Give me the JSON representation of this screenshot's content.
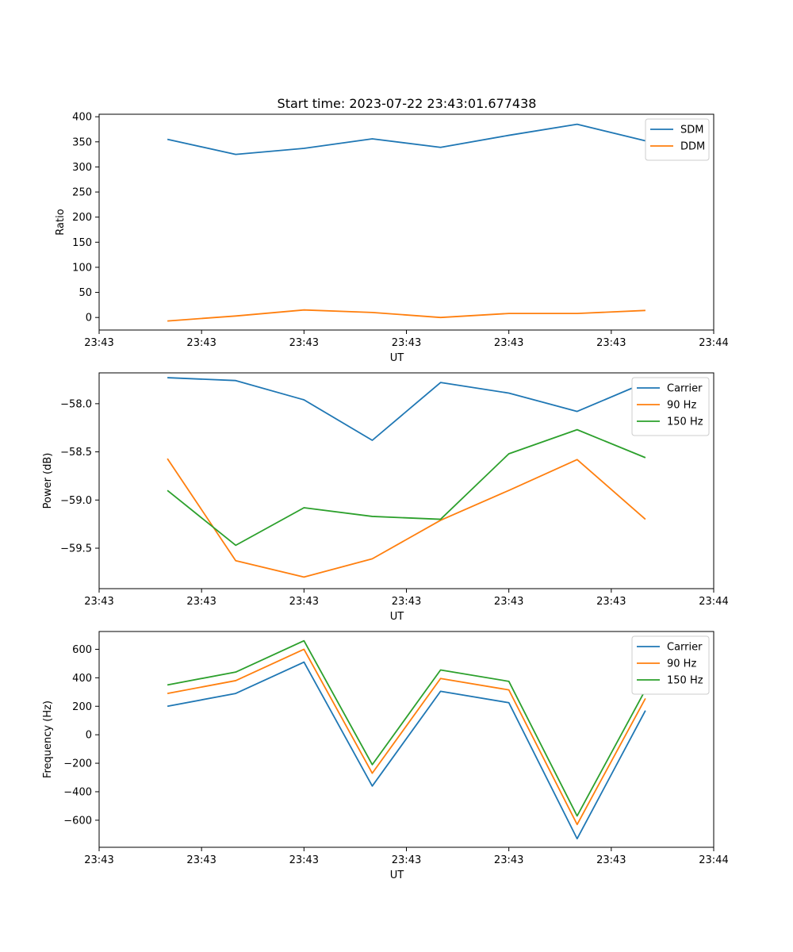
{
  "figure_title": "Start time: 2023-07-22 23:43:01.677438",
  "chart_data": [
    {
      "type": "line",
      "xlabel": "UT",
      "ylabel": "Ratio",
      "xlim": [
        -1,
        8
      ],
      "xticks": [
        -1,
        0.5,
        2,
        3.5,
        5,
        6.5,
        8
      ],
      "xtick_labels": [
        "23:43",
        "23:43",
        "23:43",
        "23:43",
        "23:43",
        "23:43",
        "23:44"
      ],
      "ylim": [
        -25,
        405
      ],
      "yticks": [
        0,
        50,
        100,
        150,
        200,
        250,
        300,
        350,
        400
      ],
      "x": [
        0,
        1,
        2,
        3,
        4,
        5,
        6,
        7
      ],
      "series": [
        {
          "name": "SDM",
          "color": "#1f77b4",
          "values": [
            355,
            325,
            337,
            356,
            339,
            363,
            385,
            352
          ]
        },
        {
          "name": "DDM",
          "color": "#ff7f0e",
          "values": [
            -7,
            3,
            15,
            10,
            0,
            8,
            8,
            14
          ]
        }
      ],
      "legend": "top-right"
    },
    {
      "type": "line",
      "xlabel": "UT",
      "ylabel": "Power (dB)",
      "xlim": [
        -1,
        8
      ],
      "xticks": [
        -1,
        0.5,
        2,
        3.5,
        5,
        6.5,
        8
      ],
      "xtick_labels": [
        "23:43",
        "23:43",
        "23:43",
        "23:43",
        "23:43",
        "23:43",
        "23:44"
      ],
      "ylim": [
        -59.92,
        -57.68
      ],
      "yticks": [
        -59.5,
        -59.0,
        -58.5,
        -58.0
      ],
      "ytick_labels": [
        "−59.5",
        "−59.0",
        "−58.5",
        "−58.0"
      ],
      "x": [
        0,
        1,
        2,
        3,
        4,
        5,
        6,
        7
      ],
      "series": [
        {
          "name": "Carrier",
          "color": "#1f77b4",
          "values": [
            -57.73,
            -57.76,
            -57.96,
            -58.38,
            -57.78,
            -57.89,
            -58.08,
            -57.78
          ]
        },
        {
          "name": "90 Hz",
          "color": "#ff7f0e",
          "values": [
            -58.57,
            -59.63,
            -59.8,
            -59.61,
            -59.21,
            -58.9,
            -58.58,
            -59.2
          ]
        },
        {
          "name": "150 Hz",
          "color": "#2ca02c",
          "values": [
            -58.9,
            -59.47,
            -59.08,
            -59.17,
            -59.2,
            -58.52,
            -58.27,
            -58.56
          ]
        }
      ],
      "legend": "top-right"
    },
    {
      "type": "line",
      "xlabel": "UT",
      "ylabel": "Frequency (Hz)",
      "xlim": [
        -1,
        8
      ],
      "xticks": [
        -1,
        0.5,
        2,
        3.5,
        5,
        6.5,
        8
      ],
      "xtick_labels": [
        "23:43",
        "23:43",
        "23:43",
        "23:43",
        "23:43",
        "23:43",
        "23:44"
      ],
      "ylim": [
        -790,
        725
      ],
      "yticks": [
        -600,
        -400,
        -200,
        0,
        200,
        400,
        600
      ],
      "ytick_labels": [
        "−600",
        "−400",
        "−200",
        "0",
        "200",
        "400",
        "600"
      ],
      "x": [
        0,
        1,
        2,
        3,
        4,
        5,
        6,
        7
      ],
      "series": [
        {
          "name": "Carrier",
          "color": "#1f77b4",
          "values": [
            200,
            290,
            510,
            -360,
            305,
            225,
            -730,
            170
          ]
        },
        {
          "name": "90 Hz",
          "color": "#ff7f0e",
          "values": [
            290,
            380,
            600,
            -270,
            395,
            315,
            -630,
            255
          ]
        },
        {
          "name": "150 Hz",
          "color": "#2ca02c",
          "values": [
            350,
            440,
            660,
            -210,
            455,
            375,
            -570,
            315
          ]
        }
      ],
      "legend": "top-right"
    }
  ]
}
